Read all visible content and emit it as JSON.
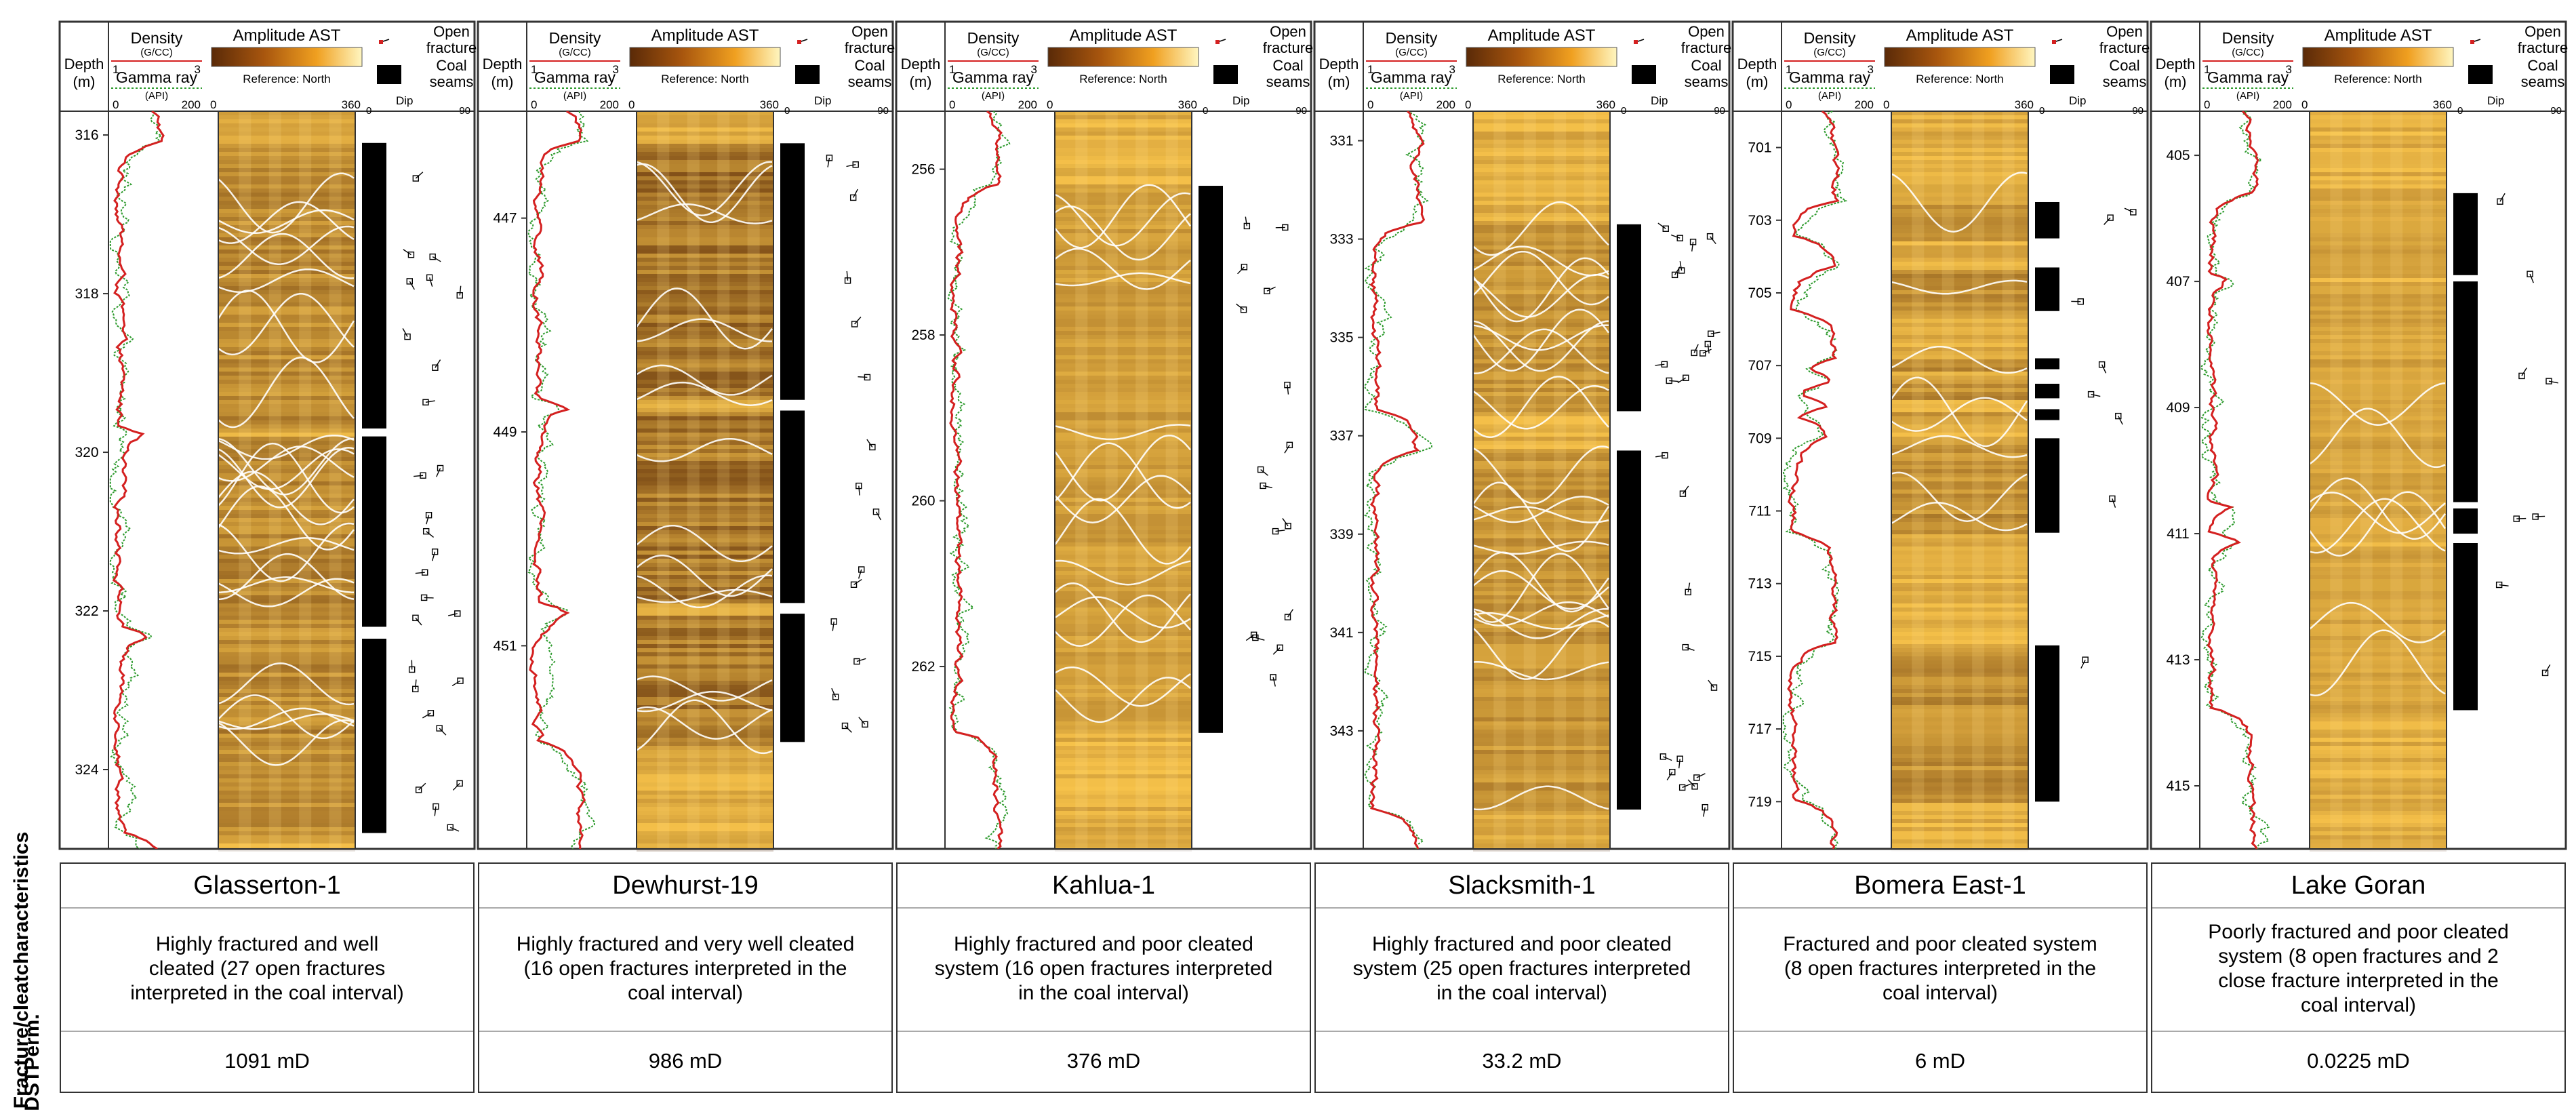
{
  "headers": {
    "depth": [
      "Depth",
      "(m)"
    ],
    "density": "Density",
    "density_unit": "(G/CC)",
    "density_ticks": [
      "1",
      "3"
    ],
    "gamma": "Gamma ray",
    "gamma_unit": "(API)",
    "gamma_ticks": [
      "0",
      "200"
    ],
    "amplitude": "Amplitude AST",
    "reference": "Reference: North",
    "amp_ticks": [
      "0",
      "360"
    ],
    "open_fracture": [
      "Open",
      "fracture"
    ],
    "coal_seams": [
      "Coal",
      "seams"
    ],
    "dip": "Dip",
    "dip_ticks": [
      "0",
      "90"
    ]
  },
  "row_labels": {
    "characteristics": [
      "Fracture/cleat",
      "characteristics"
    ],
    "perm": [
      "DST",
      "Perm."
    ]
  },
  "colors": {
    "density_curve": "#d42020",
    "gamma_curve": "#2c9a2c",
    "image_light": "#f6c24a",
    "image_dark": "#5a2a08",
    "coal": "#000000",
    "sinusoid": "#ffffff"
  },
  "wells": [
    {
      "name": "Glasserton-1",
      "characteristics": [
        "Highly fractured and well",
        "cleated (27 open fractures",
        "interpreted in the coal interval)"
      ],
      "perm": "1091 mD",
      "depth_ticks": [
        "316",
        "318",
        "320",
        "322",
        "324"
      ],
      "depth_range": [
        315.7,
        325.0
      ],
      "coal_seams": [
        [
          316.1,
          319.7
        ],
        [
          319.8,
          322.2
        ],
        [
          322.35,
          324.8
        ]
      ],
      "sinusoid_count": 27,
      "dark": 0.55
    },
    {
      "name": "Dewhurst-19",
      "characteristics": [
        "Highly fractured and very well cleated",
        "(16 open fractures interpreted in the",
        "coal interval)"
      ],
      "perm": "986 mD",
      "depth_ticks": [
        "447",
        "449",
        "451"
      ],
      "depth_range": [
        446.0,
        452.9
      ],
      "coal_seams": [
        [
          446.3,
          448.7
        ],
        [
          448.8,
          450.6
        ],
        [
          450.7,
          451.9
        ]
      ],
      "sinusoid_count": 16,
      "dark": 0.75
    },
    {
      "name": "Kahlua-1",
      "characteristics": [
        "Highly fractured and poor cleated",
        "system (16 open fractures interpreted",
        "in the coal interval)"
      ],
      "perm": "376 mD",
      "depth_ticks": [
        "256",
        "258",
        "260",
        "262"
      ],
      "depth_range": [
        255.3,
        264.2
      ],
      "coal_seams": [
        [
          256.2,
          262.8
        ]
      ],
      "sinusoid_count": 16,
      "dark": 0.35
    },
    {
      "name": "Slacksmith-1",
      "characteristics": [
        "Highly fractured and poor cleated",
        "system (25 open fractures interpreted",
        "in the coal interval)"
      ],
      "perm": "33.2 mD",
      "depth_ticks": [
        "331",
        "333",
        "335",
        "337",
        "339",
        "341",
        "343"
      ],
      "depth_range": [
        330.4,
        345.4
      ],
      "coal_seams": [
        [
          332.7,
          336.5
        ],
        [
          337.3,
          344.6
        ]
      ],
      "sinusoid_count": 25,
      "dark": 0.45
    },
    {
      "name": "Bomera East-1",
      "characteristics": [
        "Fractured and poor cleated system",
        "(8 open fractures interpreted in the",
        "coal interval)"
      ],
      "perm": "6 mD",
      "depth_ticks": [
        "701",
        "703",
        "705",
        "707",
        "709",
        "711",
        "713",
        "715",
        "717",
        "719"
      ],
      "depth_range": [
        700.0,
        720.3
      ],
      "coal_seams": [
        [
          702.5,
          703.5
        ],
        [
          704.3,
          705.5
        ],
        [
          706.8,
          707.1
        ],
        [
          707.5,
          707.9
        ],
        [
          708.2,
          708.5
        ],
        [
          709.0,
          711.6
        ],
        [
          714.7,
          719.0
        ]
      ],
      "sinusoid_count": 8,
      "dark": 0.5
    },
    {
      "name": "Lake Goran",
      "characteristics": [
        "Poorly fractured and poor cleated",
        "system (8 open fractures and 2",
        "close fracture interpreted in the",
        "coal interval)"
      ],
      "perm": "0.0225 mD",
      "depth_ticks": [
        "405",
        "407",
        "409",
        "411",
        "413",
        "415"
      ],
      "depth_range": [
        404.3,
        416.0
      ],
      "coal_seams": [
        [
          405.6,
          406.9
        ],
        [
          407.0,
          410.5
        ],
        [
          410.6,
          411.0
        ],
        [
          411.15,
          413.8
        ]
      ],
      "sinusoid_count": 8,
      "dark": 0.3
    }
  ]
}
